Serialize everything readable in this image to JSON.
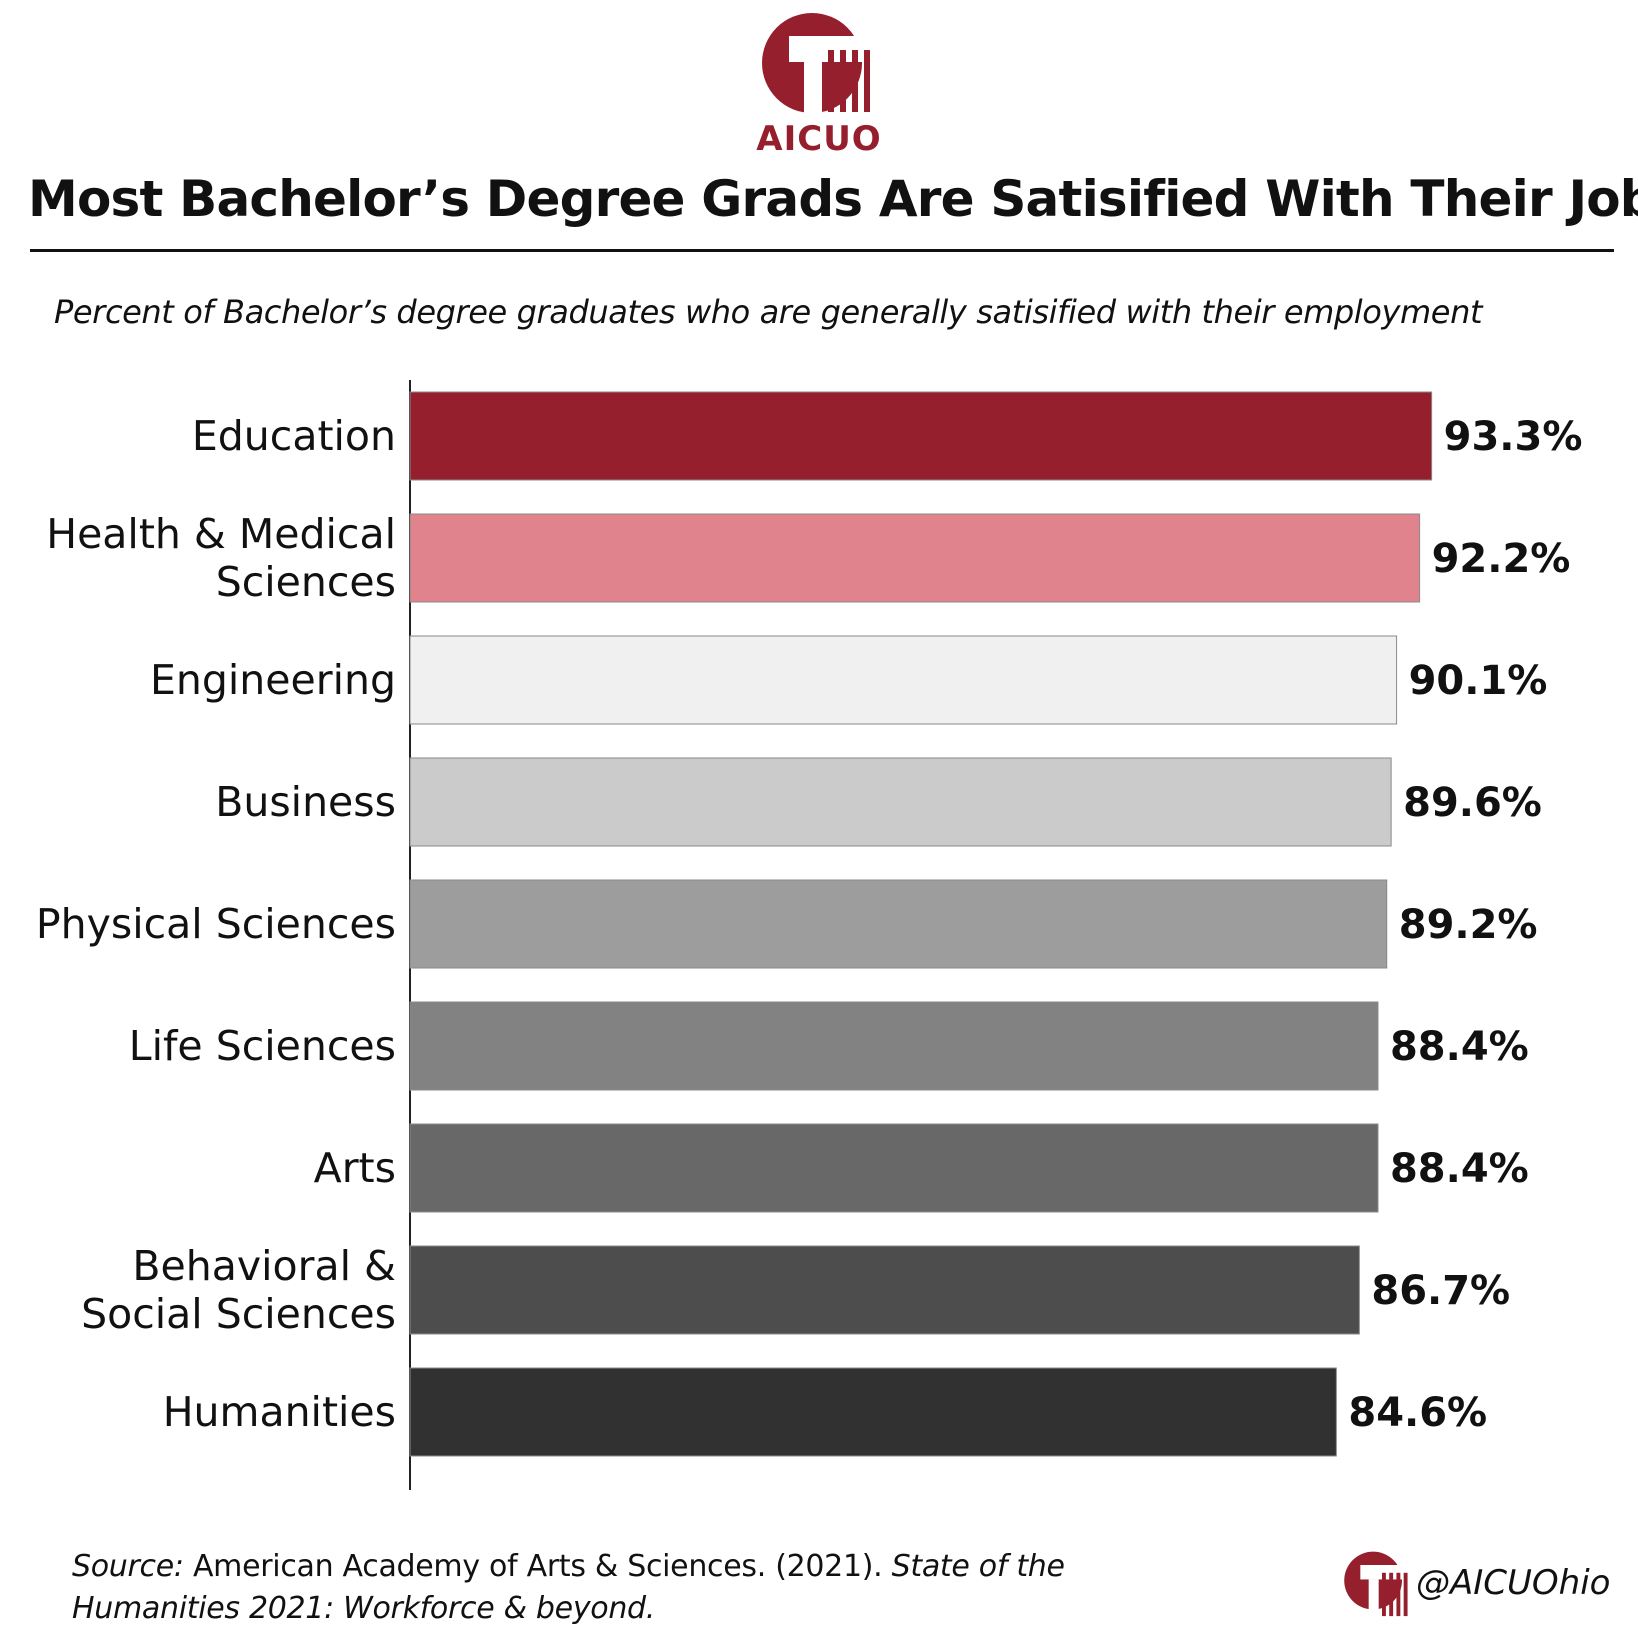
{
  "brand": {
    "logo_text": "AICUO",
    "handle": "@AICUOhio",
    "color": "#951F2D"
  },
  "header": {
    "title": "Most Bachelor’s Degree Grads Are Satisified With Their Jobs",
    "subtitle": "Percent of Bachelor’s degree graduates who are generally satisified with their employment"
  },
  "chart_data": {
    "type": "bar",
    "orientation": "horizontal",
    "title": "Most Bachelor’s Degree Grads Are Satisified With Their Jobs",
    "subtitle": "Percent of Bachelor’s degree graduates who are generally satisified with their employment",
    "xlabel": "",
    "ylabel": "",
    "xlim": [
      0,
      100
    ],
    "grid": false,
    "legend": "none",
    "categories": [
      [
        "Education"
      ],
      [
        "Health & Medical",
        "Sciences"
      ],
      [
        "Engineering"
      ],
      [
        "Business"
      ],
      [
        "Physical Sciences"
      ],
      [
        "Life Sciences"
      ],
      [
        "Arts"
      ],
      [
        "Behavioral &",
        "Social Sciences"
      ],
      [
        "Humanities"
      ]
    ],
    "values": [
      93.3,
      92.2,
      90.1,
      89.6,
      89.2,
      88.4,
      88.4,
      86.7,
      84.6
    ],
    "value_labels": [
      "93.3%",
      "92.2%",
      "90.1%",
      "89.6%",
      "89.2%",
      "88.4%",
      "88.4%",
      "86.7%",
      "84.6%"
    ],
    "colors": [
      "#951F2D",
      "#E0838C",
      "#F0F0F0",
      "#CBCBCB",
      "#9D9D9D",
      "#828282",
      "#686868",
      "#4D4D4D",
      "#313131"
    ]
  },
  "footer": {
    "source_label": "Source:",
    "source_body": " American Academy of Arts & Sciences. (2021). ",
    "source_title_a": "State of the",
    "source_title_b": "Humanities 2021: Workforce & beyond."
  }
}
